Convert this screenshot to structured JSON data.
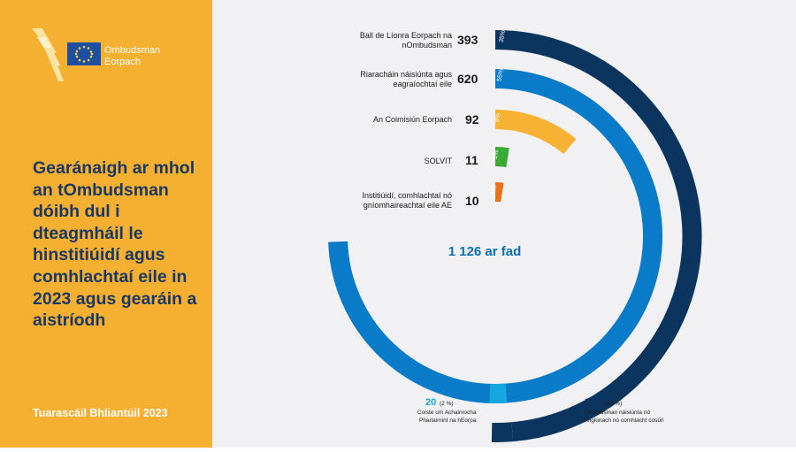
{
  "left_panel": {
    "logo_line1": "Ombudsman",
    "logo_line2": "Eorpach",
    "title": "Gearánaigh ar mhol an tOmbudsman dóibh dul i dteagmháil le hinstitiúidí agus comhlachtaí eile in 2023 agus gearáin a aistríodh",
    "footer": "Tuarascáil Bhliantúil 2023"
  },
  "colors": {
    "panel": "#f5b031",
    "title": "#1a3864",
    "dark_blue": "#0b345f",
    "mid_blue": "#0a7bc8",
    "yellow": "#f7b234",
    "green": "#3aa935",
    "orange": "#e8711c",
    "light_blue": "#17a7e0",
    "background": "#f1f1f4"
  },
  "chart_data": {
    "type": "radial-bar",
    "total_label": "1 126 ar fad",
    "series": [
      {
        "label": "Ball de Líonra Eorpach na nOmbudsman",
        "value": 393,
        "percent": "35%",
        "color": "#0b345f"
      },
      {
        "label": "Riaracháin náisiúnta agus eagraíochtaí eile",
        "value": 620,
        "percent": "55%",
        "color": "#0a7bc8"
      },
      {
        "label": "An Coimisiún Eorpach",
        "value": 92,
        "percent": "8%",
        "color": "#f7b234"
      },
      {
        "label": "SOLVIT",
        "value": 11,
        "percent": "1%",
        "color": "#3aa935"
      },
      {
        "label": "Institiúidí, comhlachtaí nó gníomhaireachtaí eile AE",
        "value": 10,
        "percent": "1%",
        "color": "#e8711c"
      }
    ],
    "sub_breakdowns": [
      {
        "value": 20,
        "percent": "(2 %)",
        "label_line1": "Coiste um Achainíocha",
        "label_line2": "Pharlaimint na hEorpa",
        "parent": "Riaracháin náisiúnta agus eagraíochtaí eile",
        "color": "#17a7e0"
      },
      {
        "value": 373,
        "percent": "(33 %)",
        "label_line1": "Ombudsman náisiúnta nó",
        "label_line2": "réigiúnach nó comhlacht cosúil",
        "parent": "Ball de Líonra Eorpach na nOmbudsman",
        "color": "#0b345f"
      }
    ]
  }
}
